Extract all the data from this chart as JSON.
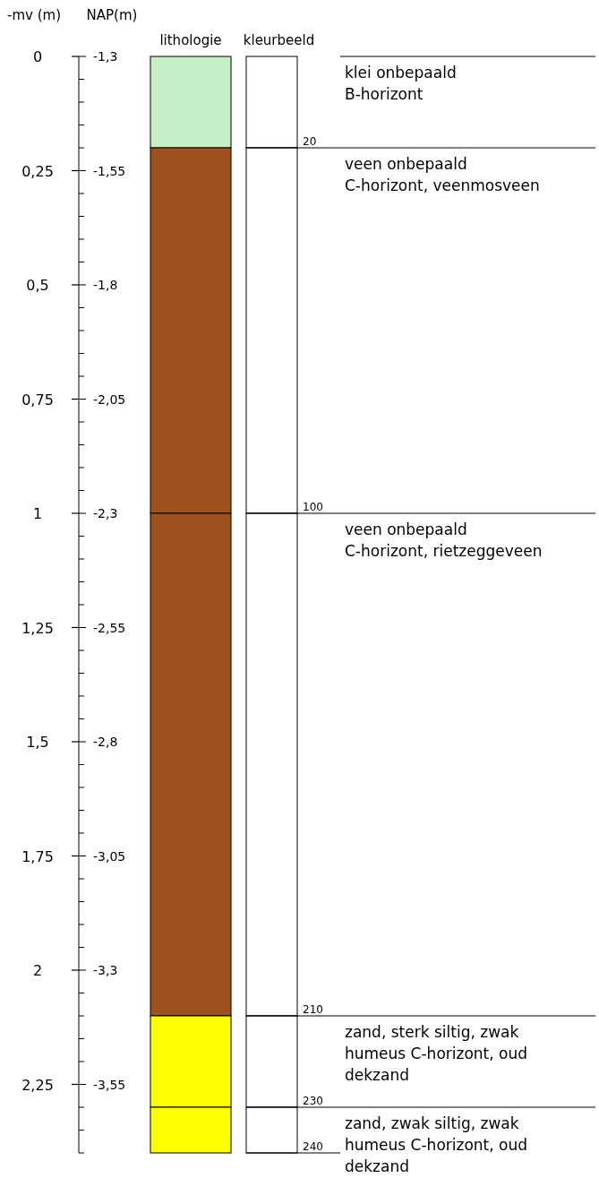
{
  "chart_data": {
    "type": "bar",
    "stacked": true,
    "categories": [
      "lithologie",
      "kleurbeeld"
    ],
    "ylabel": "-mv (m)",
    "y2label": "NAP(m)",
    "ylim": [
      2.4,
      0
    ],
    "y2lim": [
      -3.7,
      -1.3
    ],
    "yticks": [
      0,
      {
        "value": 0.25,
        "label": "0,25"
      },
      {
        "value": 0.5,
        "label": "0,5"
      },
      {
        "value": 0.75,
        "label": "0,75"
      },
      1,
      {
        "value": 1.25,
        "label": "1,25"
      },
      {
        "value": 1.5,
        "label": "1,5"
      },
      {
        "value": 1.75,
        "label": "1,75"
      },
      2,
      {
        "value": 2.25,
        "label": "2,25"
      }
    ],
    "y2ticks": [
      {
        "value": -1.3,
        "label": "-1,3"
      },
      {
        "value": -1.55,
        "label": "-1,55"
      },
      {
        "value": -1.8,
        "label": "-1,8"
      },
      {
        "value": -2.05,
        "label": "-2,05"
      },
      {
        "value": -2.3,
        "label": "-2,3"
      },
      {
        "value": -2.55,
        "label": "-2,55"
      },
      {
        "value": -2.8,
        "label": "-2,8"
      },
      {
        "value": -3.05,
        "label": "-3,05"
      },
      {
        "value": -3.3,
        "label": "-3,3"
      },
      {
        "value": -3.55,
        "label": "-3,55"
      }
    ],
    "series": [
      {
        "values": [
          0.2,
          0.2
        ],
        "colors": [
          "#c6efc6",
          "#ffffff"
        ]
      },
      {
        "values": [
          0.8,
          0.8
        ],
        "colors": [
          "#a0521e",
          "#ffffff"
        ]
      },
      {
        "values": [
          1.1,
          1.1
        ],
        "colors": [
          "#a0521e",
          "#ffffff"
        ]
      },
      {
        "values": [
          0.2,
          0.2
        ],
        "colors": [
          "#ffff00",
          "#ffffff"
        ]
      },
      {
        "values": [
          0.1,
          0.1
        ],
        "colors": [
          "#ffff00",
          "#ffffff"
        ]
      }
    ],
    "ref_lines": [
      {
        "axis": "y",
        "value": 0.2,
        "label": "20"
      },
      {
        "axis": "y",
        "value": 1.0,
        "label": "100"
      },
      {
        "axis": "y",
        "value": 2.1,
        "label": "210"
      },
      {
        "axis": "y",
        "value": 2.3,
        "label": "230"
      },
      {
        "axis": "y",
        "value": 2.4,
        "label": "240"
      }
    ],
    "annotations": [
      "klei onbepaald\nB-horizont",
      "veen onbepaald\nC-horizont, veenmosveen",
      "veen onbepaald\nC-horizont, rietzeggeveen",
      "zand, sterk siltig, zwak\nhumeus C-horizont, oud\ndekzand",
      "zand, zwak siltig, zwak\nhumeus C-horizont, oud\ndekzand"
    ]
  }
}
